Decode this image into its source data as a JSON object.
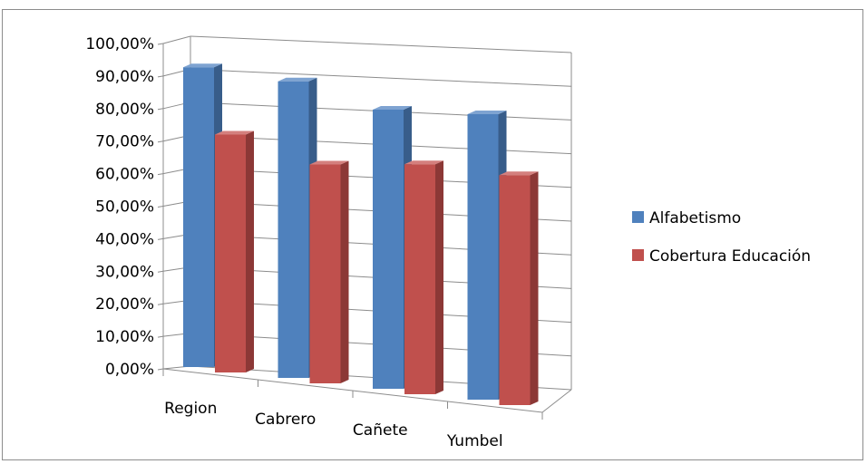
{
  "chart_data": {
    "type": "bar",
    "title": "",
    "xlabel": "",
    "ylabel": "",
    "categories": [
      "Region",
      "Cabrero",
      "Cañete",
      "Yumbel"
    ],
    "series": [
      {
        "name": "Alfabetismo",
        "values": [
          94.5,
          93.5,
          88.0,
          90.0
        ],
        "color": "#4f81bd",
        "side_color": "#385d8a",
        "top_color": "#7ea3d1"
      },
      {
        "name": "Cobertura Educación",
        "values": [
          75.0,
          69.0,
          72.5,
          72.5
        ],
        "color": "#c0504d",
        "side_color": "#8c3836",
        "top_color": "#d47f7d"
      }
    ],
    "ylim": [
      0,
      100
    ],
    "yticks": [
      "0,00%",
      "10,00%",
      "20,00%",
      "30,00%",
      "40,00%",
      "50,00%",
      "60,00%",
      "70,00%",
      "80,00%",
      "90,00%",
      "100,00%"
    ],
    "grid": true,
    "legend_position": "right"
  }
}
